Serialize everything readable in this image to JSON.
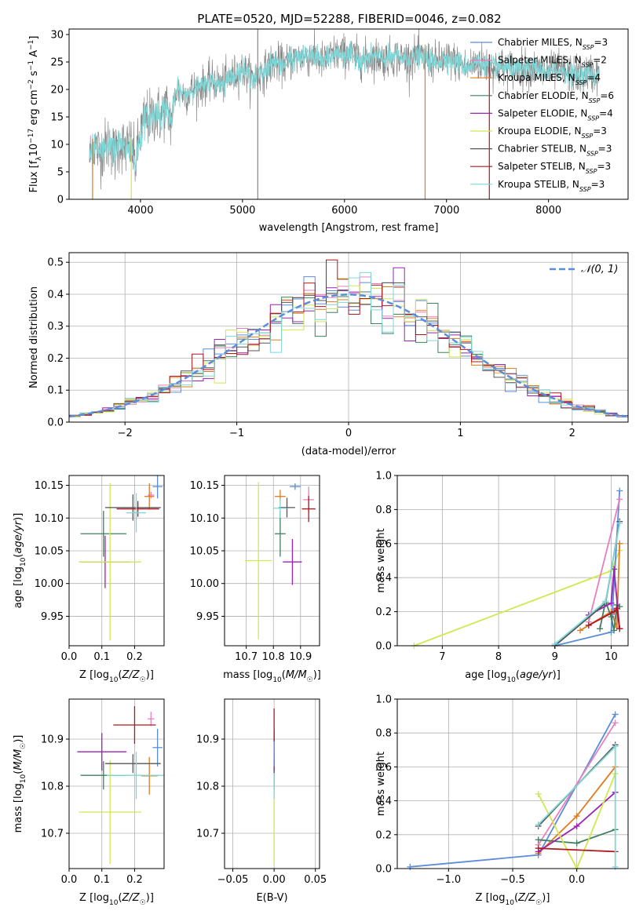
{
  "figure_title": "PLATE=0520, MJD=52288, FIBERID=0046, z=0.082",
  "colors": {
    "Chabrier MILES": "#5b8ddb",
    "Salpeter MILES": "#e97fbe",
    "Kroupa MILES": "#e07b1f",
    "Chabrier ELODIE": "#3f7f5f",
    "Salpeter ELODIE": "#9b22b5",
    "Kroupa ELODIE": "#cfe84e",
    "Chabrier STELIB": "#555555",
    "Salpeter STELIB": "#b0171f",
    "Kroupa STELIB": "#7fd6d6",
    "normal": "#5b8ddb"
  },
  "chart_data": [
    {
      "id": "spectrum",
      "type": "line",
      "title": "PLATE=0520, MJD=52288, FIBERID=0046, z=0.082",
      "xlabel": "wavelength [Angstrom, rest frame]",
      "ylabel": "Flux [f_λ10^-17 erg cm^-2 s^-1 A^-1]",
      "xlim": [
        3300,
        8780
      ],
      "ylim": [
        0,
        31
      ],
      "xticks": [
        4000,
        5000,
        6000,
        7000,
        8000
      ],
      "yticks": [
        0,
        5,
        10,
        15,
        20,
        25,
        30
      ],
      "legend_position": "upper-right",
      "legend": [
        {
          "label": "Chabrier MILES, N",
          "sub": "SSP",
          "tail": "=3",
          "color": "#5b8ddb"
        },
        {
          "label": "Salpeter MILES, N",
          "sub": "SSP",
          "tail": "=2",
          "color": "#e97fbe"
        },
        {
          "label": "Kroupa MILES, N",
          "sub": "SSP",
          "tail": "=4",
          "color": "#e07b1f"
        },
        {
          "label": "Chabrier ELODIE, N",
          "sub": "SSP",
          "tail": "=6",
          "color": "#3f7f5f"
        },
        {
          "label": "Salpeter ELODIE, N",
          "sub": "SSP",
          "tail": "=4",
          "color": "#9b22b5"
        },
        {
          "label": "Kroupa ELODIE, N",
          "sub": "SSP",
          "tail": "=3",
          "color": "#cfe84e"
        },
        {
          "label": "Chabrier STELIB, N",
          "sub": "SSP",
          "tail": "=3",
          "color": "#555555"
        },
        {
          "label": "Salpeter STELIB, N",
          "sub": "SSP",
          "tail": "=3",
          "color": "#b0171f"
        },
        {
          "label": "Kroupa STELIB, N",
          "sub": "SSP",
          "tail": "=3",
          "color": "#7fd6d6"
        }
      ],
      "data_series": {
        "wavelength": [
          3500,
          3550,
          3600,
          3650,
          3700,
          3750,
          3800,
          3850,
          3900,
          3950,
          4000,
          4050,
          4100,
          4150,
          4200,
          4250,
          4300,
          4350,
          4400,
          4450,
          4500,
          4600,
          4700,
          4800,
          4900,
          5000,
          5100,
          5200,
          5300,
          5400,
          5500,
          5600,
          5700,
          5800,
          5900,
          6000,
          6100,
          6200,
          6300,
          6400,
          6500,
          6600,
          6700,
          6800,
          6900,
          7000,
          7100,
          7200,
          7300,
          7400,
          7500,
          7600,
          7700,
          7800,
          7900,
          8000,
          8100,
          8200,
          8300,
          8400,
          8500
        ],
        "flux": [
          7.5,
          10.0,
          8.5,
          9.5,
          10.5,
          8.0,
          10.5,
          9.0,
          10.0,
          6.5,
          12.0,
          15.0,
          14.5,
          16.0,
          15.0,
          17.0,
          14.0,
          20.0,
          19.5,
          19.0,
          20.0,
          20.5,
          21.5,
          21.0,
          22.5,
          23.5,
          22.0,
          23.0,
          25.0,
          24.5,
          25.5,
          26.0,
          26.0,
          25.0,
          26.5,
          26.5,
          26.0,
          25.5,
          26.0,
          25.5,
          26.0,
          25.5,
          26.0,
          25.5,
          25.0,
          25.5,
          25.0,
          24.0,
          25.0,
          24.5,
          24.0,
          24.0,
          23.5,
          24.0,
          23.5,
          23.0,
          23.5,
          23.0,
          22.5,
          23.0,
          22.5
        ]
      }
    },
    {
      "id": "residuals",
      "type": "step",
      "xlabel": "(data-model)/error",
      "ylabel": "Normed distribution",
      "xlim": [
        -2.5,
        2.5
      ],
      "ylim": [
        0,
        0.53
      ],
      "xticks": [
        -2,
        -1,
        0,
        1,
        2
      ],
      "xticklabels": [
        "−2",
        "−1",
        "0",
        "1",
        "2"
      ],
      "yticks": [
        0.0,
        0.1,
        0.2,
        0.3,
        0.4,
        0.5
      ],
      "yticklabels": [
        "0.0",
        "0.1",
        "0.2",
        "0.3",
        "0.4",
        "0.5"
      ],
      "grid": true,
      "legend_position": "upper-right",
      "legend_label": "𝒩(0, 1)",
      "bin_width": 0.1
    },
    {
      "id": "age_vs_Z",
      "type": "errorbar",
      "xlabel": "Z [log10(Z/Z☉)]",
      "ylabel": "age [log10(age/yr)]",
      "xlim": [
        0.0,
        0.29
      ],
      "ylim": [
        9.905,
        10.165
      ],
      "xticks": [
        0.0,
        0.1,
        0.2
      ],
      "xticklabels": [
        "0.0",
        "0.1",
        "0.2"
      ],
      "yticks": [
        9.95,
        10.0,
        10.05,
        10.1,
        10.15
      ],
      "yticklabels": [
        "9.95",
        "10.00",
        "10.05",
        "10.10",
        "10.15"
      ],
      "grid": true,
      "points": [
        {
          "model": "Chabrier MILES",
          "x": 0.27,
          "xerr": 0.015,
          "y": 10.148,
          "yerr": 0.018
        },
        {
          "model": "Salpeter MILES",
          "x": 0.25,
          "xerr": 0.01,
          "y": 10.135,
          "yerr": 0.005
        },
        {
          "model": "Kroupa MILES",
          "x": 0.245,
          "xerr": 0.015,
          "y": 10.133,
          "yerr": 0.02
        },
        {
          "model": "Chabrier ELODIE",
          "x": 0.105,
          "xerr": 0.07,
          "y": 10.076,
          "yerr": 0.035
        },
        {
          "model": "Salpeter ELODIE",
          "x": 0.11,
          "xerr": 0.075,
          "y": 10.033,
          "yerr": 0.04
        },
        {
          "model": "Kroupa ELODIE",
          "x": 0.125,
          "xerr": 0.095,
          "y": 10.033,
          "yerr": 0.12
        },
        {
          "model": "Chabrier STELIB",
          "x": 0.195,
          "xerr": 0.085,
          "y": 10.116,
          "yerr": 0.02
        },
        {
          "model": "Salpeter STELIB",
          "x": 0.21,
          "xerr": 0.065,
          "y": 10.114,
          "yerr": 0.012
        },
        {
          "model": "Kroupa STELIB",
          "x": 0.205,
          "xerr": 0.03,
          "y": 10.108,
          "yerr": 0.03
        }
      ]
    },
    {
      "id": "age_vs_mass",
      "type": "errorbar",
      "xlabel": "mass [log10(M/M☉)]",
      "xlim": [
        10.62,
        10.97
      ],
      "ylim": [
        9.905,
        10.165
      ],
      "xticks": [
        10.7,
        10.8,
        10.9
      ],
      "xticklabels": [
        "10.7",
        "10.8",
        "10.9"
      ],
      "yticks": [
        9.95,
        10.0,
        10.05,
        10.1,
        10.15
      ],
      "yticklabels": [
        "9.95",
        "10.00",
        "10.05",
        "10.10",
        "10.15"
      ],
      "grid": true,
      "points": [
        {
          "model": "Chabrier MILES",
          "x": 10.88,
          "xerr": 0.02,
          "y": 10.148,
          "yerr": 0.005
        },
        {
          "model": "Salpeter MILES",
          "x": 10.93,
          "xerr": 0.02,
          "y": 10.128,
          "yerr": 0.02
        },
        {
          "model": "Kroupa MILES",
          "x": 10.825,
          "xerr": 0.02,
          "y": 10.133,
          "yerr": 0.01
        },
        {
          "model": "Chabrier ELODIE",
          "x": 10.825,
          "xerr": 0.02,
          "y": 10.076,
          "yerr": 0.035
        },
        {
          "model": "Salpeter ELODIE",
          "x": 10.87,
          "xerr": 0.035,
          "y": 10.033,
          "yerr": 0.035
        },
        {
          "model": "Kroupa ELODIE",
          "x": 10.745,
          "xerr": 0.05,
          "y": 10.035,
          "yerr": 0.12
        },
        {
          "model": "Chabrier STELIB",
          "x": 10.85,
          "xerr": 0.03,
          "y": 10.116,
          "yerr": 0.015
        },
        {
          "model": "Salpeter STELIB",
          "x": 10.93,
          "xerr": 0.025,
          "y": 10.114,
          "yerr": 0.02
        },
        {
          "model": "Kroupa STELIB",
          "x": 10.825,
          "xerr": 0.025,
          "y": 10.115,
          "yerr": 0.015
        }
      ]
    },
    {
      "id": "weight_vs_age",
      "type": "line",
      "xlabel": "age [log10(age/yr)]",
      "ylabel": "mass weight",
      "xlim": [
        6.2,
        10.3
      ],
      "ylim": [
        0,
        1.0
      ],
      "xticks": [
        7,
        8,
        9,
        10
      ],
      "xticklabels": [
        "7",
        "8",
        "9",
        "10"
      ],
      "yticks": [
        0.0,
        0.2,
        0.4,
        0.6,
        0.8,
        1.0
      ],
      "yticklabels": [
        "0.0",
        "0.2",
        "0.4",
        "0.6",
        "0.8",
        "1.0"
      ],
      "grid": true,
      "series": [
        {
          "model": "Kroupa ELODIE",
          "x": [
            6.5,
            10.0,
            10.15
          ],
          "y": [
            0.0,
            0.44,
            0.56
          ]
        },
        {
          "model": "Kroupa MILES",
          "x": [
            9.45,
            10.0,
            10.1,
            10.15
          ],
          "y": [
            0.09,
            0.2,
            0.11,
            0.6
          ]
        },
        {
          "model": "Chabrier MILES",
          "x": [
            9.0,
            10.0,
            10.15
          ],
          "y": [
            0.0,
            0.08,
            0.91
          ]
        },
        {
          "model": "Salpeter MILES",
          "x": [
            9.6,
            10.15
          ],
          "y": [
            0.14,
            0.86
          ]
        },
        {
          "model": "Chabrier ELODIE",
          "x": [
            9.8,
            9.9,
            10.0,
            10.05,
            10.1,
            10.15
          ],
          "y": [
            0.1,
            0.26,
            0.17,
            0.09,
            0.24,
            0.23
          ]
        },
        {
          "model": "Salpeter ELODIE",
          "x": [
            9.6,
            10.0,
            10.05,
            10.15
          ],
          "y": [
            0.18,
            0.25,
            0.45,
            0.1
          ]
        },
        {
          "model": "Chabrier STELIB",
          "x": [
            9.0,
            9.9,
            10.15
          ],
          "y": [
            0.0,
            0.25,
            0.73
          ]
        },
        {
          "model": "Salpeter STELIB",
          "x": [
            9.6,
            10.05,
            10.1,
            10.15
          ],
          "y": [
            0.12,
            0.2,
            0.22,
            0.1
          ]
        },
        {
          "model": "Kroupa STELIB",
          "x": [
            9.0,
            9.9,
            10.15
          ],
          "y": [
            0.01,
            0.26,
            0.72
          ]
        }
      ]
    },
    {
      "id": "mass_vs_Z",
      "type": "errorbar",
      "xlabel": "Z [log10(Z/Z☉)]",
      "ylabel": "mass [log10(M/M☉)]",
      "xlim": [
        0.0,
        0.29
      ],
      "ylim": [
        10.625,
        10.985
      ],
      "xticks": [
        0.0,
        0.1,
        0.2
      ],
      "xticklabels": [
        "0.0",
        "0.1",
        "0.2"
      ],
      "yticks": [
        10.7,
        10.8,
        10.9
      ],
      "yticklabels": [
        "10.7",
        "10.8",
        "10.9"
      ],
      "grid": true,
      "points": [
        {
          "model": "Chabrier MILES",
          "x": 0.27,
          "xerr": 0.015,
          "y": 10.882,
          "yerr": 0.04
        },
        {
          "model": "Salpeter MILES",
          "x": 0.25,
          "xerr": 0.01,
          "y": 10.943,
          "yerr": 0.015
        },
        {
          "model": "Kroupa MILES",
          "x": 0.245,
          "xerr": 0.025,
          "y": 10.822,
          "yerr": 0.04
        },
        {
          "model": "Chabrier ELODIE",
          "x": 0.105,
          "xerr": 0.07,
          "y": 10.823,
          "yerr": 0.03
        },
        {
          "model": "Salpeter ELODIE",
          "x": 0.1,
          "xerr": 0.075,
          "y": 10.873,
          "yerr": 0.04
        },
        {
          "model": "Kroupa ELODIE",
          "x": 0.125,
          "xerr": 0.095,
          "y": 10.745,
          "yerr": 0.11
        },
        {
          "model": "Chabrier STELIB",
          "x": 0.195,
          "xerr": 0.085,
          "y": 10.848,
          "yerr": 0.02
        },
        {
          "model": "Salpeter STELIB",
          "x": 0.2,
          "xerr": 0.065,
          "y": 10.93,
          "yerr": 0.04
        },
        {
          "model": "Kroupa STELIB",
          "x": 0.205,
          "xerr": 0.09,
          "y": 10.823,
          "yerr": 0.05
        }
      ]
    },
    {
      "id": "mass_vs_ebv",
      "type": "errorbar",
      "xlabel": "E(B-V)",
      "xlim": [
        -0.06,
        0.055
      ],
      "ylim": [
        10.625,
        10.985
      ],
      "xticks": [
        -0.05,
        0.0,
        0.05
      ],
      "xticklabels": [
        "−0.05",
        "0.00",
        "0.05"
      ],
      "yticks": [
        10.7,
        10.8,
        10.9
      ],
      "yticklabels": [
        "10.7",
        "10.8",
        "10.9"
      ],
      "grid": true,
      "points": [
        {
          "model": "Kroupa ELODIE",
          "x": 0.0,
          "xerr": 0.0,
          "y": 10.745,
          "yerr": 0.11
        },
        {
          "model": "Chabrier ELODIE",
          "x": 0.0,
          "xerr": 0.0,
          "y": 10.823,
          "yerr": 0.03
        },
        {
          "model": "Kroupa STELIB",
          "x": 0.0,
          "xerr": 0.0,
          "y": 10.823,
          "yerr": 0.05
        },
        {
          "model": "Chabrier STELIB",
          "x": 0.0,
          "xerr": 0.0,
          "y": 10.848,
          "yerr": 0.02
        },
        {
          "model": "Salpeter ELODIE",
          "x": 0.0,
          "xerr": 0.0,
          "y": 10.873,
          "yerr": 0.04
        },
        {
          "model": "Chabrier MILES",
          "x": 0.0,
          "xerr": 0.0,
          "y": 10.882,
          "yerr": 0.04
        },
        {
          "model": "Salpeter STELIB",
          "x": 0.0,
          "xerr": 0.0,
          "y": 10.93,
          "yerr": 0.035
        }
      ]
    },
    {
      "id": "weight_vs_Z",
      "type": "line",
      "xlabel": "Z [log10(Z/Z☉)]",
      "ylabel": "mass weight",
      "xlim": [
        -1.4,
        0.4
      ],
      "ylim": [
        0,
        1.0
      ],
      "xticks": [
        -1.0,
        -0.5,
        0.0
      ],
      "xticklabels": [
        "−1.0",
        "−0.5",
        "0.0"
      ],
      "yticks": [
        0.0,
        0.2,
        0.4,
        0.6,
        0.8,
        1.0
      ],
      "yticklabels": [
        "0.0",
        "0.2",
        "0.4",
        "0.6",
        "0.8",
        "1.0"
      ],
      "grid": true,
      "series": [
        {
          "model": "Chabrier MILES",
          "x": [
            -1.3,
            -0.3,
            0.3
          ],
          "y": [
            0.01,
            0.08,
            0.91
          ]
        },
        {
          "model": "Salpeter MILES",
          "x": [
            -0.3,
            0.3
          ],
          "y": [
            0.14,
            0.86
          ]
        },
        {
          "model": "Kroupa MILES",
          "x": [
            -0.3,
            0.0,
            0.3
          ],
          "y": [
            0.09,
            0.31,
            0.6
          ]
        },
        {
          "model": "Chabrier ELODIE",
          "x": [
            -0.3,
            0.0,
            0.3
          ],
          "y": [
            0.17,
            0.15,
            0.23
          ]
        },
        {
          "model": "Salpeter ELODIE",
          "x": [
            -0.3,
            0.0,
            0.3
          ],
          "y": [
            0.1,
            0.25,
            0.45
          ]
        },
        {
          "model": "Kroupa ELODIE",
          "x": [
            -0.3,
            0.0,
            0.3
          ],
          "y": [
            0.44,
            0.0,
            0.56
          ]
        },
        {
          "model": "Chabrier STELIB",
          "x": [
            -0.3,
            0.3
          ],
          "y": [
            0.25,
            0.73
          ]
        },
        {
          "model": "Salpeter STELIB",
          "x": [
            -0.3,
            0.3
          ],
          "y": [
            0.12,
            0.1
          ]
        },
        {
          "model": "Kroupa STELIB",
          "x": [
            -0.3,
            0.3,
            0.3
          ],
          "y": [
            0.26,
            0.72,
            0.01
          ]
        }
      ]
    }
  ]
}
